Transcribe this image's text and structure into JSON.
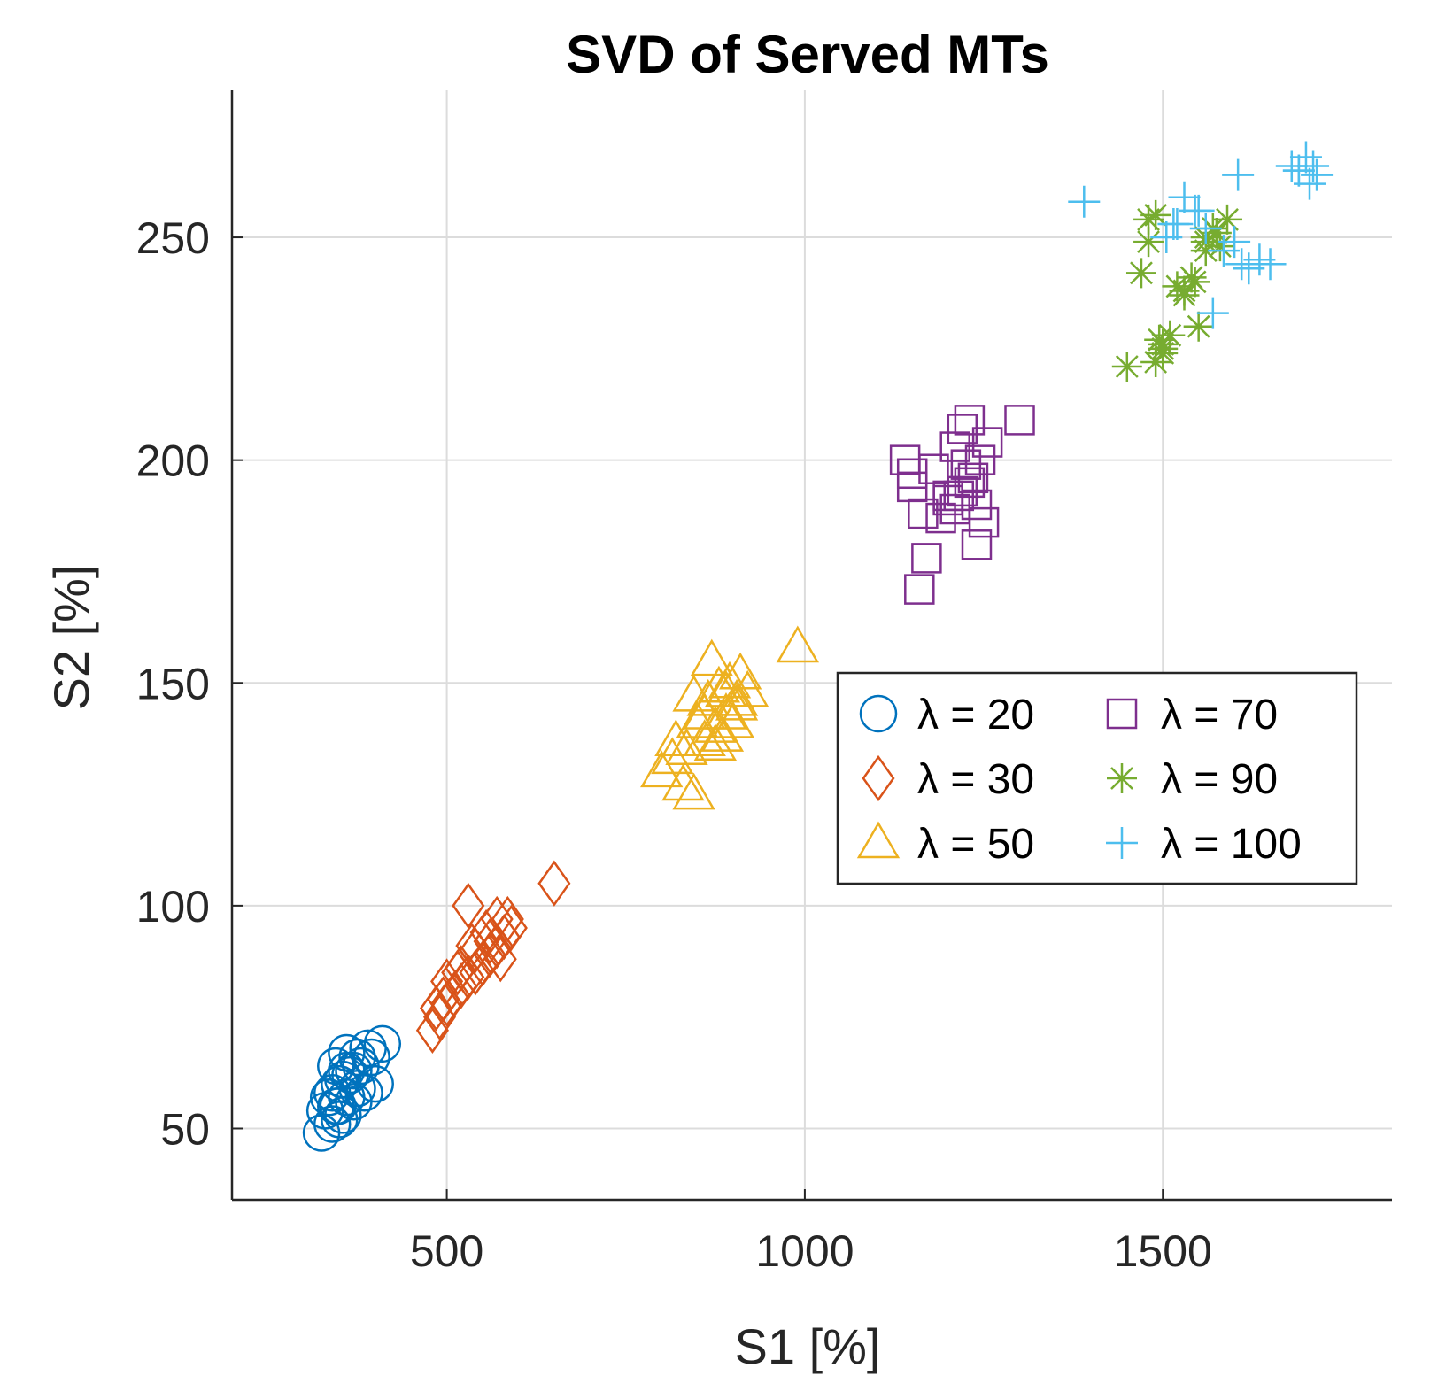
{
  "chart_data": {
    "type": "scatter",
    "title": "SVD of Served MTs",
    "xlabel": "S1 [%]",
    "ylabel": "S2 [%]",
    "xlim": [
      200,
      1820
    ],
    "ylim": [
      34,
      283
    ],
    "xticks": [
      500,
      1000,
      1500
    ],
    "yticks": [
      50,
      100,
      150,
      200,
      250
    ],
    "grid": true,
    "legend": {
      "placement": "east",
      "columns": 2
    },
    "series": [
      {
        "name": "λ = 20",
        "marker": "circle",
        "color": "#0072BD",
        "x": [
          325,
          340,
          355,
          370,
          385,
          400,
          345,
          360,
          375,
          330,
          350,
          365,
          380,
          340,
          355,
          370,
          395,
          345,
          360,
          335,
          350,
          375,
          390,
          410,
          360,
          348
        ],
        "y": [
          49,
          51,
          53,
          56,
          58,
          60,
          55,
          57,
          59,
          54,
          60,
          62,
          64,
          58,
          61,
          63,
          66,
          64,
          67,
          57,
          52,
          66,
          68,
          69,
          63,
          55
        ]
      },
      {
        "name": "λ = 30",
        "marker": "diamond",
        "color": "#D95319",
        "x": [
          480,
          490,
          500,
          510,
          520,
          530,
          540,
          550,
          560,
          570,
          580,
          590,
          500,
          520,
          540,
          560,
          575,
          585,
          495,
          515,
          535,
          555,
          530,
          570,
          650,
          485
        ],
        "y": [
          72,
          75,
          78,
          80,
          82,
          84,
          85,
          87,
          89,
          91,
          93,
          95,
          83,
          86,
          90,
          92,
          88,
          97,
          79,
          85,
          91,
          94,
          100,
          97,
          105,
          77
        ]
      },
      {
        "name": "λ = 50",
        "marker": "triangle",
        "color": "#EDB120",
        "x": [
          800,
          815,
          830,
          845,
          860,
          875,
          890,
          905,
          920,
          835,
          850,
          865,
          880,
          895,
          910,
          870,
          885,
          900,
          860,
          845,
          875,
          990,
          820,
          890,
          905
        ],
        "y": [
          130,
          133,
          127,
          125,
          137,
          140,
          143,
          145,
          148,
          135,
          141,
          146,
          149,
          150,
          152,
          155,
          138,
          141,
          143,
          147,
          136,
          158,
          137,
          148,
          146
        ]
      },
      {
        "name": "λ = 70",
        "marker": "square",
        "color": "#7E2F8E",
        "x": [
          1140,
          1150,
          1160,
          1170,
          1180,
          1190,
          1200,
          1210,
          1220,
          1230,
          1240,
          1250,
          1200,
          1220,
          1240,
          1300,
          1150,
          1210,
          1225,
          1235,
          1245,
          1165,
          1230,
          1215,
          1255
        ],
        "y": [
          200,
          194,
          171,
          178,
          198,
          187,
          192,
          203,
          207,
          195,
          190,
          186,
          191,
          193,
          181,
          209,
          197,
          189,
          199,
          196,
          200,
          188,
          209,
          192,
          204
        ]
      },
      {
        "name": "λ = 90",
        "marker": "asterisk",
        "color": "#77AC30",
        "x": [
          1450,
          1470,
          1480,
          1490,
          1500,
          1510,
          1520,
          1530,
          1540,
          1550,
          1560,
          1570,
          1580,
          1490,
          1500,
          1530,
          1545,
          1560,
          1575,
          1590,
          1495,
          1480,
          1500,
          1560
        ],
        "y": [
          221,
          242,
          249,
          222,
          226,
          228,
          239,
          237,
          241,
          230,
          250,
          252,
          248,
          255,
          224,
          238,
          240,
          249,
          251,
          254,
          227,
          254,
          225,
          247
        ]
      },
      {
        "name": "λ = 100",
        "marker": "plus",
        "color": "#4DBEEE",
        "x": [
          1390,
          1505,
          1515,
          1530,
          1545,
          1560,
          1570,
          1585,
          1600,
          1610,
          1620,
          1635,
          1650,
          1680,
          1690,
          1700,
          1710,
          1715,
          1690,
          1705,
          1550,
          1520,
          1605
        ],
        "y": [
          258,
          250,
          253,
          259,
          256,
          252,
          233,
          247,
          249,
          244,
          243,
          245,
          244,
          266,
          265,
          268,
          266,
          264,
          265,
          262,
          256,
          253,
          264
        ]
      }
    ]
  }
}
